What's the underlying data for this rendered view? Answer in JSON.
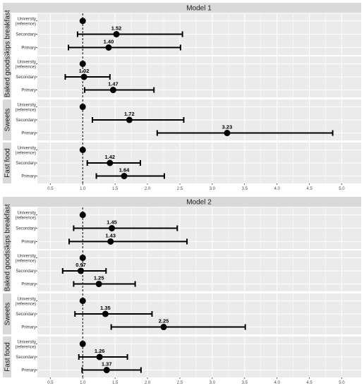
{
  "chart_data": [
    {
      "type": "forest",
      "title": "Model 1",
      "xlim": [
        0.3,
        5.3
      ],
      "xticks": [
        "0.5",
        "1.0",
        "1.5",
        "2.0",
        "2.5",
        "3.0",
        "3.5",
        "4.0",
        "4.5",
        "5.0"
      ],
      "reference_line": 1.0,
      "panels": [
        {
          "name": "Skips breakfast",
          "rows": [
            {
              "label": "University (reference)",
              "estimate": 1.0,
              "lower": null,
              "upper": null,
              "value_label": ""
            },
            {
              "label": "Secondary",
              "estimate": 1.52,
              "lower": 0.92,
              "upper": 2.54,
              "value_label": "1.52"
            },
            {
              "label": "Primary",
              "estimate": 1.4,
              "lower": 0.78,
              "upper": 2.51,
              "value_label": "1.40"
            }
          ]
        },
        {
          "name": "Baked goods",
          "rows": [
            {
              "label": "University (reference)",
              "estimate": 1.0,
              "lower": null,
              "upper": null,
              "value_label": ""
            },
            {
              "label": "Secondary",
              "estimate": 1.02,
              "lower": 0.73,
              "upper": 1.42,
              "value_label": "1.02"
            },
            {
              "label": "Primary",
              "estimate": 1.47,
              "lower": 1.03,
              "upper": 2.1,
              "value_label": "1.47"
            }
          ]
        },
        {
          "name": "Sweets",
          "rows": [
            {
              "label": "University (reference)",
              "estimate": 1.0,
              "lower": null,
              "upper": null,
              "value_label": ""
            },
            {
              "label": "Secondary",
              "estimate": 1.72,
              "lower": 1.15,
              "upper": 2.56,
              "value_label": "1.72"
            },
            {
              "label": "Primary",
              "estimate": 3.23,
              "lower": 2.15,
              "upper": 4.86,
              "value_label": "3.23"
            }
          ]
        },
        {
          "name": "Fast food",
          "rows": [
            {
              "label": "University (reference)",
              "estimate": 1.0,
              "lower": null,
              "upper": null,
              "value_label": ""
            },
            {
              "label": "Secondary",
              "estimate": 1.42,
              "lower": 1.07,
              "upper": 1.89,
              "value_label": "1.42"
            },
            {
              "label": "Primary",
              "estimate": 1.64,
              "lower": 1.21,
              "upper": 2.26,
              "value_label": "1.64"
            }
          ]
        }
      ]
    },
    {
      "type": "forest",
      "title": "Model 2",
      "xlim": [
        0.3,
        5.3
      ],
      "xticks": [
        "0.5",
        "1.0",
        "1.5",
        "2.0",
        "2.5",
        "3.0",
        "3.5",
        "4.0",
        "4.5",
        "5.0"
      ],
      "reference_line": 1.0,
      "panels": [
        {
          "name": "Skips breakfast",
          "rows": [
            {
              "label": "University (reference)",
              "estimate": 1.0,
              "lower": null,
              "upper": null,
              "value_label": ""
            },
            {
              "label": "Secondary",
              "estimate": 1.45,
              "lower": 0.86,
              "upper": 2.46,
              "value_label": "1.45"
            },
            {
              "label": "Primary",
              "estimate": 1.43,
              "lower": 0.79,
              "upper": 2.61,
              "value_label": "1.43"
            }
          ]
        },
        {
          "name": "Baked goods",
          "rows": [
            {
              "label": "University (reference)",
              "estimate": 1.0,
              "lower": null,
              "upper": null,
              "value_label": ""
            },
            {
              "label": "Secondary",
              "estimate": 0.97,
              "lower": 0.69,
              "upper": 1.36,
              "value_label": "0.97"
            },
            {
              "label": "Primary",
              "estimate": 1.25,
              "lower": 0.86,
              "upper": 1.81,
              "value_label": "1.25"
            }
          ]
        },
        {
          "name": "Sweets",
          "rows": [
            {
              "label": "University (reference)",
              "estimate": 1.0,
              "lower": null,
              "upper": null,
              "value_label": ""
            },
            {
              "label": "Secondary",
              "estimate": 1.35,
              "lower": 0.88,
              "upper": 2.07,
              "value_label": "1.35"
            },
            {
              "label": "Primary",
              "estimate": 2.25,
              "lower": 1.44,
              "upper": 3.51,
              "value_label": "2.25"
            }
          ]
        },
        {
          "name": "Fast food",
          "rows": [
            {
              "label": "University (reference)",
              "estimate": 1.0,
              "lower": null,
              "upper": null,
              "value_label": ""
            },
            {
              "label": "Secondary",
              "estimate": 1.26,
              "lower": 0.94,
              "upper": 1.69,
              "value_label": "1.26"
            },
            {
              "label": "Primary",
              "estimate": 1.37,
              "lower": 0.99,
              "upper": 1.9,
              "value_label": "1.37"
            }
          ]
        }
      ]
    }
  ]
}
